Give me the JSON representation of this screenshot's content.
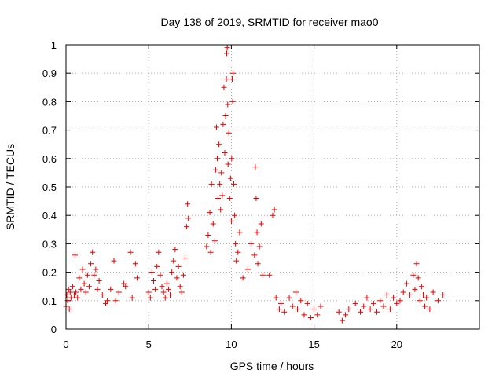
{
  "chart_data": {
    "type": "scatter",
    "title": "Day 138 of 2019, SRMTID for receiver mao0",
    "xlabel": "GPS time / hours",
    "ylabel": "SRMTID / TECUs",
    "xlim": [
      0,
      25
    ],
    "ylim": [
      0,
      1
    ],
    "xticks": [
      0,
      5,
      10,
      15,
      20
    ],
    "xtick_labels": [
      "0",
      "5",
      "10",
      "15",
      "20"
    ],
    "yticks": [
      0,
      0.1,
      0.2,
      0.3,
      0.4,
      0.5,
      0.6,
      0.7,
      0.8,
      0.9,
      1
    ],
    "ytick_labels": [
      "0",
      "0.1",
      "0.2",
      "0.3",
      "0.4",
      "0.5",
      "0.6",
      "0.7",
      "0.8",
      "0.9",
      "1"
    ],
    "grid": true,
    "marker": "plus",
    "color": "#e60000",
    "series": [
      {
        "name": "SRMTID",
        "points": [
          [
            0.0,
            0.08
          ],
          [
            0.05,
            0.12
          ],
          [
            0.1,
            0.1
          ],
          [
            0.15,
            0.14
          ],
          [
            0.2,
            0.07
          ],
          [
            0.25,
            0.13
          ],
          [
            0.3,
            0.11
          ],
          [
            0.4,
            0.15
          ],
          [
            0.5,
            0.12
          ],
          [
            0.55,
            0.26
          ],
          [
            0.6,
            0.13
          ],
          [
            0.7,
            0.11
          ],
          [
            0.8,
            0.18
          ],
          [
            0.9,
            0.14
          ],
          [
            1.0,
            0.21
          ],
          [
            1.1,
            0.16
          ],
          [
            1.2,
            0.13
          ],
          [
            1.3,
            0.19
          ],
          [
            1.4,
            0.15
          ],
          [
            1.5,
            0.23
          ],
          [
            1.6,
            0.27
          ],
          [
            1.7,
            0.19
          ],
          [
            1.8,
            0.21
          ],
          [
            1.9,
            0.14
          ],
          [
            2.0,
            0.17
          ],
          [
            2.2,
            0.12
          ],
          [
            2.4,
            0.09
          ],
          [
            2.5,
            0.1
          ],
          [
            2.7,
            0.14
          ],
          [
            2.9,
            0.24
          ],
          [
            3.0,
            0.1
          ],
          [
            3.2,
            0.13
          ],
          [
            3.5,
            0.16
          ],
          [
            3.6,
            0.15
          ],
          [
            3.9,
            0.27
          ],
          [
            4.0,
            0.11
          ],
          [
            4.2,
            0.23
          ],
          [
            4.3,
            0.18
          ],
          [
            5.0,
            0.13
          ],
          [
            5.1,
            0.11
          ],
          [
            5.2,
            0.2
          ],
          [
            5.3,
            0.17
          ],
          [
            5.4,
            0.14
          ],
          [
            5.5,
            0.22
          ],
          [
            5.6,
            0.27
          ],
          [
            5.7,
            0.19
          ],
          [
            5.8,
            0.15
          ],
          [
            5.9,
            0.13
          ],
          [
            6.0,
            0.11
          ],
          [
            6.1,
            0.16
          ],
          [
            6.2,
            0.14
          ],
          [
            6.3,
            0.12
          ],
          [
            6.4,
            0.2
          ],
          [
            6.5,
            0.24
          ],
          [
            6.6,
            0.28
          ],
          [
            6.7,
            0.18
          ],
          [
            6.8,
            0.22
          ],
          [
            6.9,
            0.15
          ],
          [
            7.0,
            0.13
          ],
          [
            7.1,
            0.19
          ],
          [
            7.2,
            0.25
          ],
          [
            7.3,
            0.36
          ],
          [
            7.35,
            0.44
          ],
          [
            7.4,
            0.39
          ],
          [
            8.5,
            0.29
          ],
          [
            8.6,
            0.33
          ],
          [
            8.7,
            0.41
          ],
          [
            8.75,
            0.27
          ],
          [
            8.8,
            0.51
          ],
          [
            8.9,
            0.37
          ],
          [
            9.0,
            0.31
          ],
          [
            9.05,
            0.56
          ],
          [
            9.1,
            0.71
          ],
          [
            9.15,
            0.6
          ],
          [
            9.2,
            0.46
          ],
          [
            9.25,
            0.65
          ],
          [
            9.3,
            0.51
          ],
          [
            9.35,
            0.42
          ],
          [
            9.4,
            0.55
          ],
          [
            9.45,
            0.47
          ],
          [
            9.5,
            0.72
          ],
          [
            9.55,
            0.85
          ],
          [
            9.6,
            0.62
          ],
          [
            9.65,
            0.75
          ],
          [
            9.7,
            0.88
          ],
          [
            9.72,
            0.97
          ],
          [
            9.75,
            0.99
          ],
          [
            9.78,
            0.79
          ],
          [
            9.8,
            0.58
          ],
          [
            9.85,
            0.69
          ],
          [
            9.9,
            0.46
          ],
          [
            9.95,
            0.53
          ],
          [
            10.0,
            0.38
          ],
          [
            10.02,
            0.6
          ],
          [
            10.05,
            0.88
          ],
          [
            10.08,
            0.8
          ],
          [
            10.1,
            0.9
          ],
          [
            10.15,
            0.51
          ],
          [
            10.2,
            0.4
          ],
          [
            10.25,
            0.3
          ],
          [
            10.3,
            0.24
          ],
          [
            10.4,
            0.27
          ],
          [
            10.5,
            0.34
          ],
          [
            10.7,
            0.18
          ],
          [
            11.0,
            0.21
          ],
          [
            11.2,
            0.3
          ],
          [
            11.4,
            0.26
          ],
          [
            11.45,
            0.57
          ],
          [
            11.5,
            0.46
          ],
          [
            11.55,
            0.34
          ],
          [
            11.6,
            0.23
          ],
          [
            11.7,
            0.29
          ],
          [
            11.8,
            0.37
          ],
          [
            11.9,
            0.19
          ],
          [
            12.3,
            0.19
          ],
          [
            12.5,
            0.4
          ],
          [
            12.6,
            0.42
          ],
          [
            12.7,
            0.11
          ],
          [
            12.9,
            0.07
          ],
          [
            13.0,
            0.09
          ],
          [
            13.2,
            0.06
          ],
          [
            13.5,
            0.11
          ],
          [
            13.7,
            0.08
          ],
          [
            13.9,
            0.13
          ],
          [
            14.0,
            0.07
          ],
          [
            14.2,
            0.1
          ],
          [
            14.4,
            0.05
          ],
          [
            14.6,
            0.09
          ],
          [
            14.8,
            0.04
          ],
          [
            15.0,
            0.07
          ],
          [
            15.2,
            0.05
          ],
          [
            15.4,
            0.08
          ],
          [
            16.5,
            0.06
          ],
          [
            16.7,
            0.03
          ],
          [
            16.9,
            0.05
          ],
          [
            17.1,
            0.07
          ],
          [
            17.5,
            0.09
          ],
          [
            17.8,
            0.06
          ],
          [
            18.0,
            0.08
          ],
          [
            18.2,
            0.11
          ],
          [
            18.4,
            0.07
          ],
          [
            18.6,
            0.09
          ],
          [
            18.8,
            0.06
          ],
          [
            19.0,
            0.1
          ],
          [
            19.2,
            0.08
          ],
          [
            19.4,
            0.12
          ],
          [
            19.6,
            0.07
          ],
          [
            19.8,
            0.11
          ],
          [
            20.0,
            0.09
          ],
          [
            20.2,
            0.1
          ],
          [
            20.4,
            0.13
          ],
          [
            20.6,
            0.16
          ],
          [
            20.8,
            0.12
          ],
          [
            21.0,
            0.19
          ],
          [
            21.1,
            0.14
          ],
          [
            21.2,
            0.23
          ],
          [
            21.3,
            0.18
          ],
          [
            21.4,
            0.1
          ],
          [
            21.5,
            0.15
          ],
          [
            21.6,
            0.12
          ],
          [
            21.7,
            0.08
          ],
          [
            21.8,
            0.11
          ],
          [
            22.0,
            0.07
          ],
          [
            22.2,
            0.13
          ],
          [
            22.5,
            0.1
          ],
          [
            22.8,
            0.12
          ]
        ]
      }
    ]
  }
}
